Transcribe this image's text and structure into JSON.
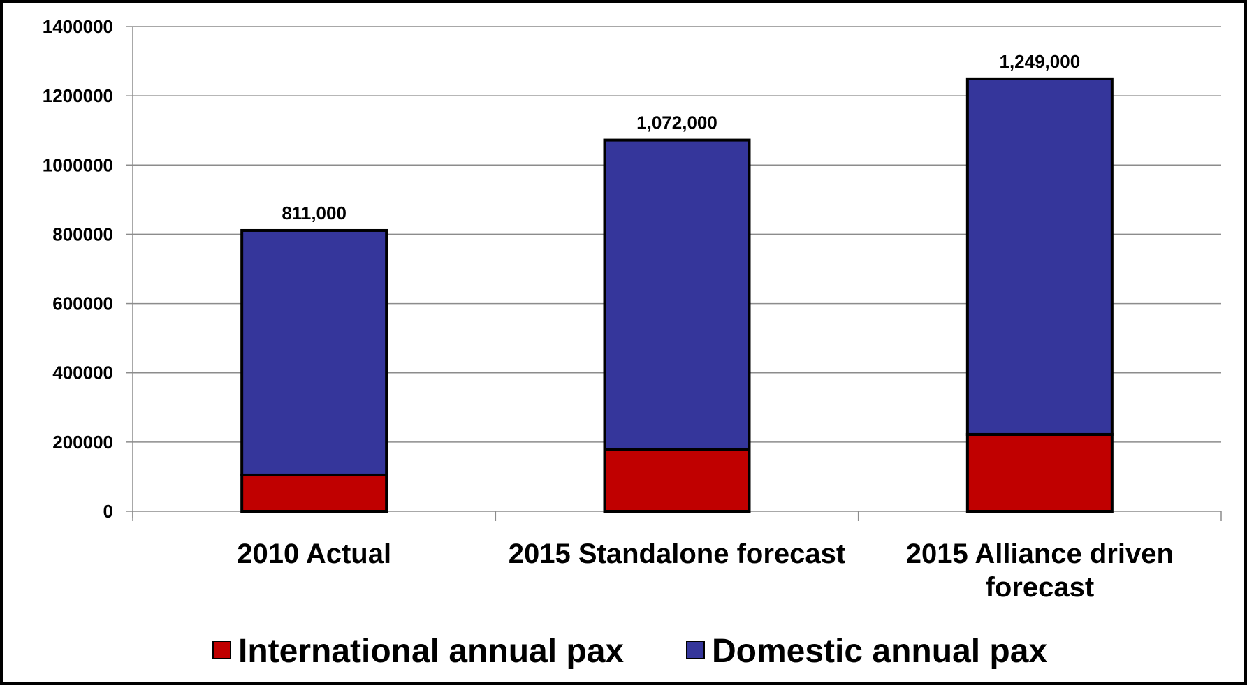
{
  "chart_data": {
    "type": "bar",
    "stacked": true,
    "categories": [
      "2010 Actual",
      "2015 Standalone forecast",
      "2015 Alliance driven forecast"
    ],
    "category_lines": [
      [
        "2010 Actual"
      ],
      [
        "2015 Standalone forecast"
      ],
      [
        "2015 Alliance driven",
        "forecast"
      ]
    ],
    "series": [
      {
        "name": "International annual pax",
        "color": "#c00000",
        "values": [
          105000,
          178000,
          222000
        ]
      },
      {
        "name": "Domestic annual pax",
        "color": "#35369b",
        "values": [
          706000,
          894000,
          1027000
        ]
      }
    ],
    "totals": [
      811000,
      1072000,
      1249000
    ],
    "total_labels": [
      "811,000",
      "1,072,000",
      "1,249,000"
    ],
    "y_ticks": [
      0,
      200000,
      400000,
      600000,
      800000,
      1000000,
      1200000,
      1400000
    ],
    "y_tick_labels": [
      "0",
      "200000",
      "400000",
      "600000",
      "800000",
      "1000000",
      "1200000",
      "1400000"
    ],
    "ylim": [
      0,
      1400000
    ],
    "grid": true,
    "legend": "bottom",
    "title": "",
    "xlabel": "",
    "ylabel": ""
  }
}
